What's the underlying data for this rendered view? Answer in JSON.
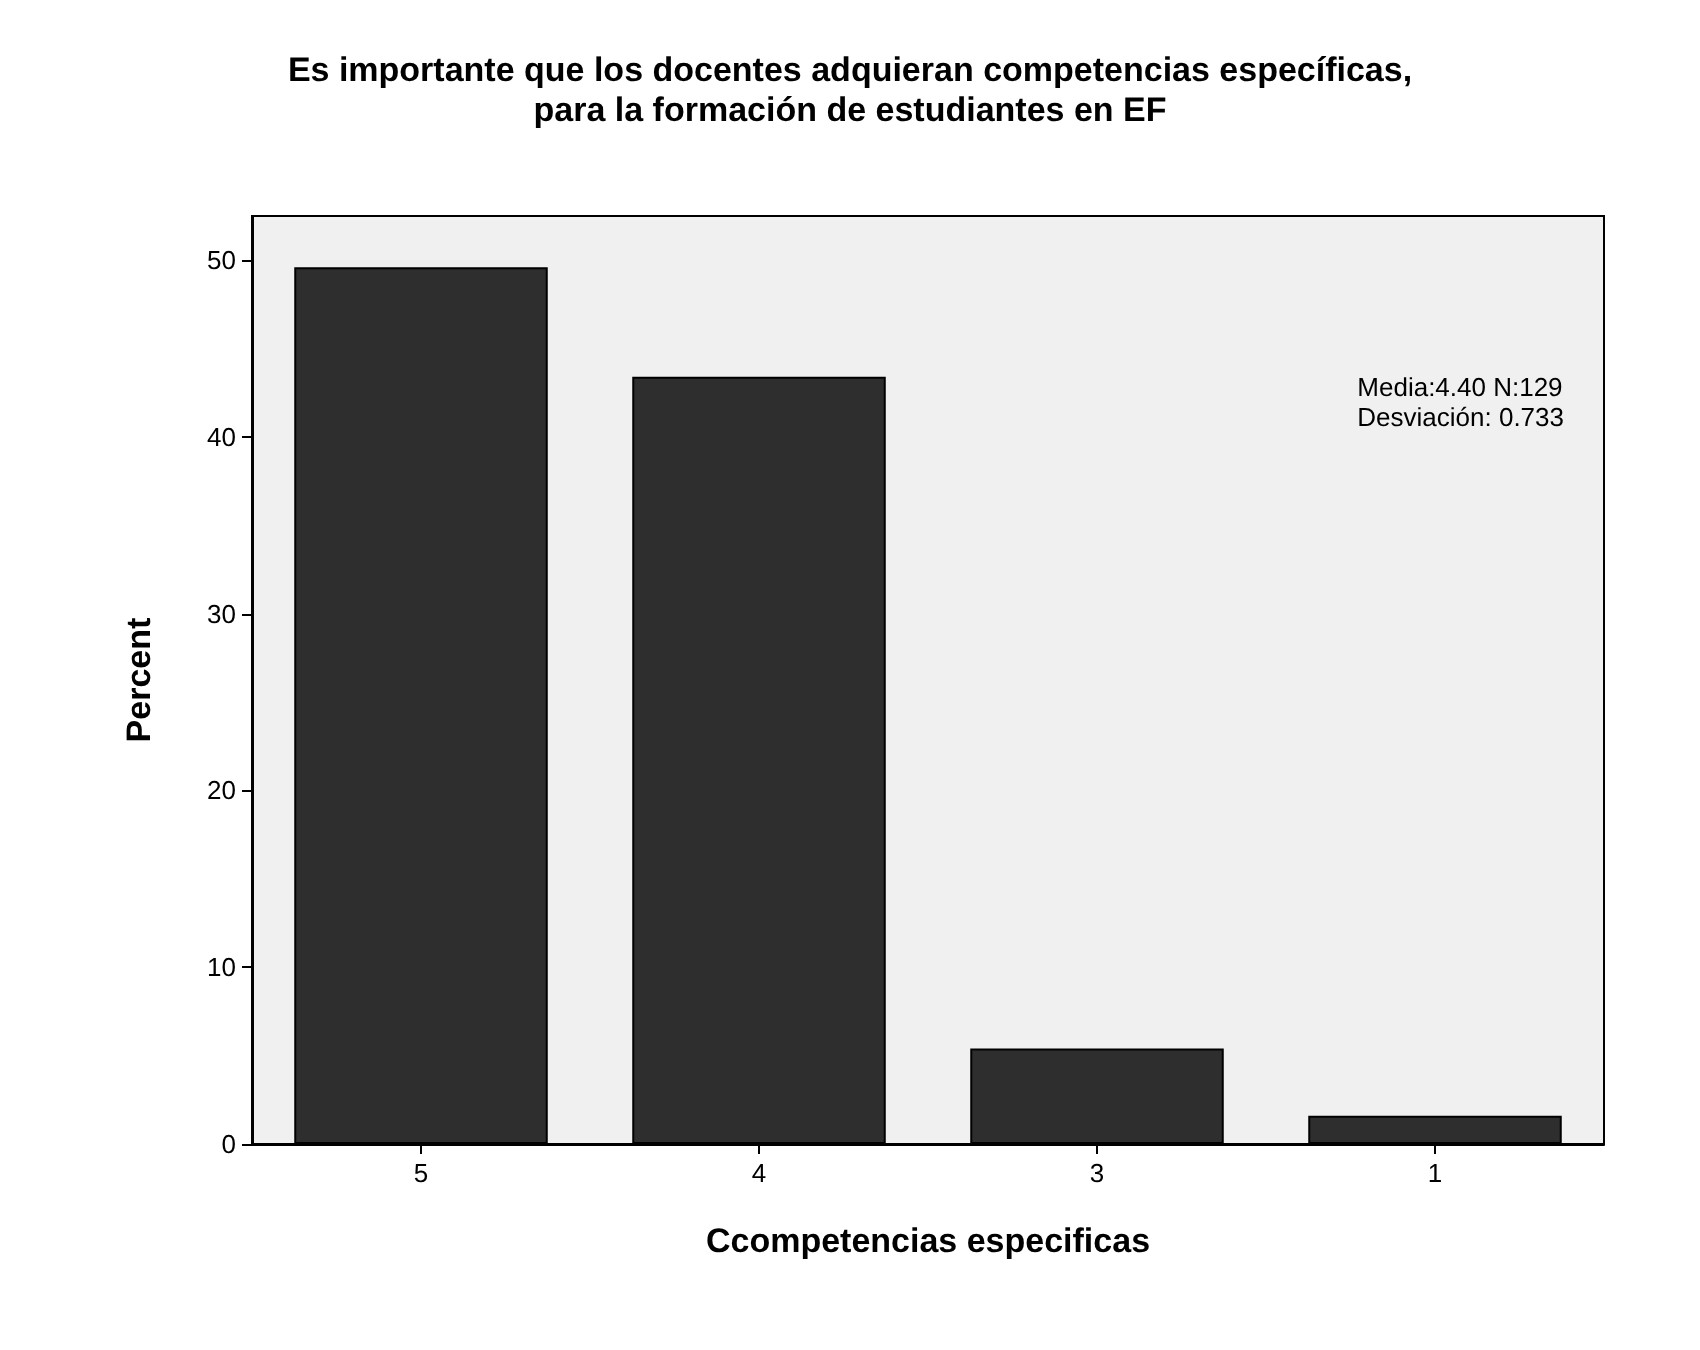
{
  "chart_data": {
    "type": "bar",
    "title": "Es importante que los docentes adquieran competencias específicas,\npara la formación de estudiantes en EF",
    "xlabel": "Ccompetencias especificas",
    "ylabel": "Percent",
    "categories": [
      "5",
      "4",
      "3",
      "1"
    ],
    "values": [
      49.6,
      43.4,
      5.4,
      1.6
    ],
    "color": "#2e2e2e",
    "ylim": [
      0,
      52.5
    ],
    "yticks": [
      0,
      10,
      20,
      30,
      40,
      50
    ],
    "grid": false,
    "annotations": [
      "Media:4.40 N:129",
      "Desviación: 0.733"
    ]
  }
}
